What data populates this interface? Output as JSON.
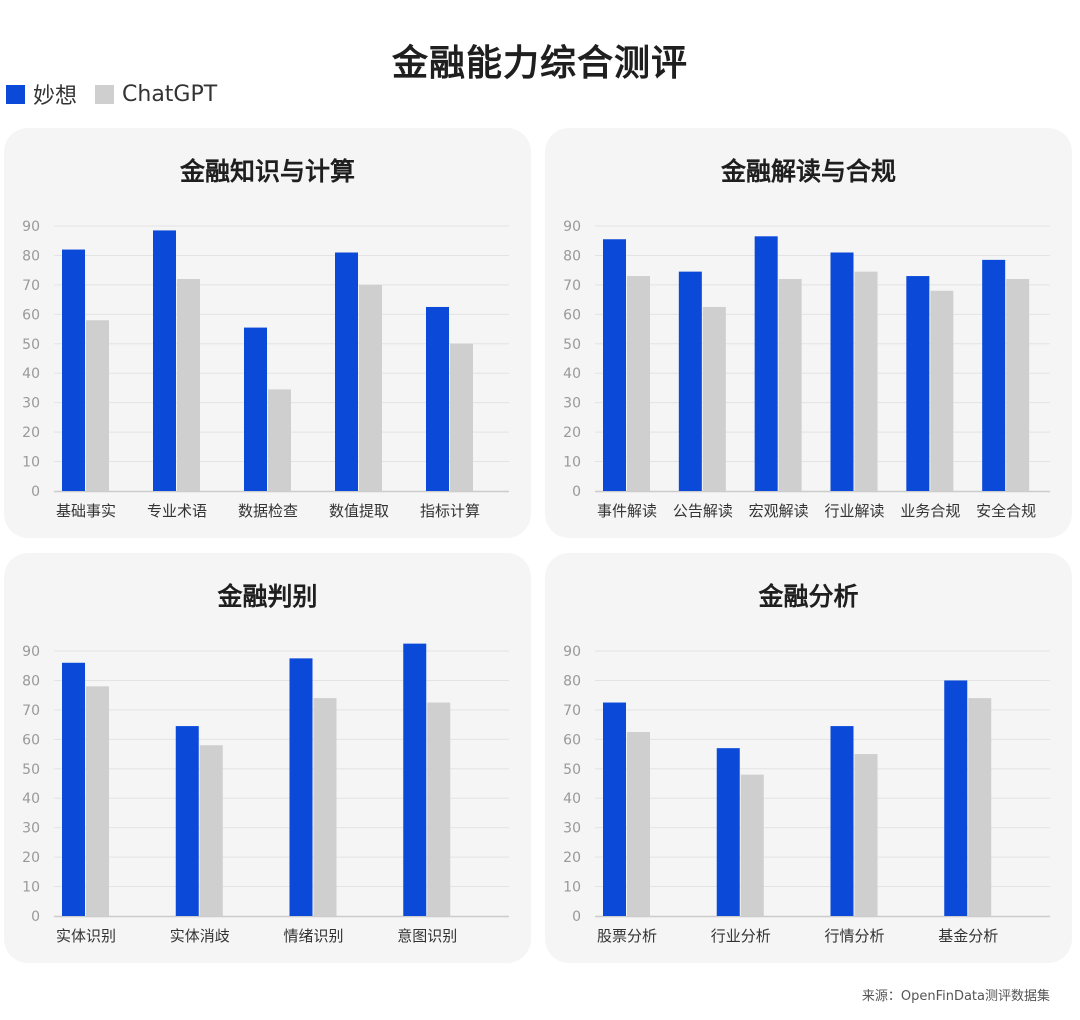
{
  "page": {
    "title": "金融能力综合测评",
    "source": "来源：OpenFinData测评数据集"
  },
  "legend": [
    {
      "label": "妙想",
      "color": "#0b49d9"
    },
    {
      "label": "ChatGPT",
      "color": "#cfcfcf"
    }
  ],
  "chart_data": [
    {
      "type": "bar",
      "title": "金融知识与计算",
      "categories": [
        "基础事实",
        "专业术语",
        "数据检查",
        "数值提取",
        "指标计算"
      ],
      "series": [
        {
          "name": "妙想",
          "color": "#0b49d9",
          "values": [
            82,
            88.5,
            55.5,
            81,
            62.5
          ]
        },
        {
          "name": "ChatGPT",
          "color": "#cfcfcf",
          "values": [
            58,
            72,
            34.5,
            70,
            50
          ]
        }
      ],
      "yticks": [
        0,
        10,
        20,
        30,
        40,
        50,
        60,
        70,
        80,
        90
      ],
      "ylim": [
        0,
        90
      ],
      "grid": true
    },
    {
      "type": "bar",
      "title": "金融解读与合规",
      "categories": [
        "事件解读",
        "公告解读",
        "宏观解读",
        "行业解读",
        "业务合规",
        "安全合规"
      ],
      "series": [
        {
          "name": "妙想",
          "color": "#0b49d9",
          "values": [
            85.5,
            74.5,
            86.5,
            81,
            73,
            78.5
          ]
        },
        {
          "name": "ChatGPT",
          "color": "#cfcfcf",
          "values": [
            73,
            62.5,
            72,
            74.5,
            68,
            72
          ]
        }
      ],
      "yticks": [
        0,
        10,
        20,
        30,
        40,
        50,
        60,
        70,
        80,
        90
      ],
      "ylim": [
        0,
        90
      ],
      "grid": true
    },
    {
      "type": "bar",
      "title": "金融判别",
      "categories": [
        "实体识别",
        "实体消歧",
        "情绪识别",
        "意图识别"
      ],
      "series": [
        {
          "name": "妙想",
          "color": "#0b49d9",
          "values": [
            86,
            64.5,
            87.5,
            92.5
          ]
        },
        {
          "name": "ChatGPT",
          "color": "#cfcfcf",
          "values": [
            78,
            58,
            74,
            72.5
          ]
        }
      ],
      "yticks": [
        0,
        10,
        20,
        30,
        40,
        50,
        60,
        70,
        80,
        90
      ],
      "ylim": [
        0,
        90
      ],
      "grid": true
    },
    {
      "type": "bar",
      "title": "金融分析",
      "categories": [
        "股票分析",
        "行业分析",
        "行情分析",
        "基金分析"
      ],
      "series": [
        {
          "name": "妙想",
          "color": "#0b49d9",
          "values": [
            72.5,
            57,
            64.5,
            80
          ]
        },
        {
          "name": "ChatGPT",
          "color": "#cfcfcf",
          "values": [
            62.5,
            48,
            55,
            74
          ]
        }
      ],
      "yticks": [
        0,
        10,
        20,
        30,
        40,
        50,
        60,
        70,
        80,
        90
      ],
      "ylim": [
        0,
        90
      ],
      "grid": true
    }
  ]
}
